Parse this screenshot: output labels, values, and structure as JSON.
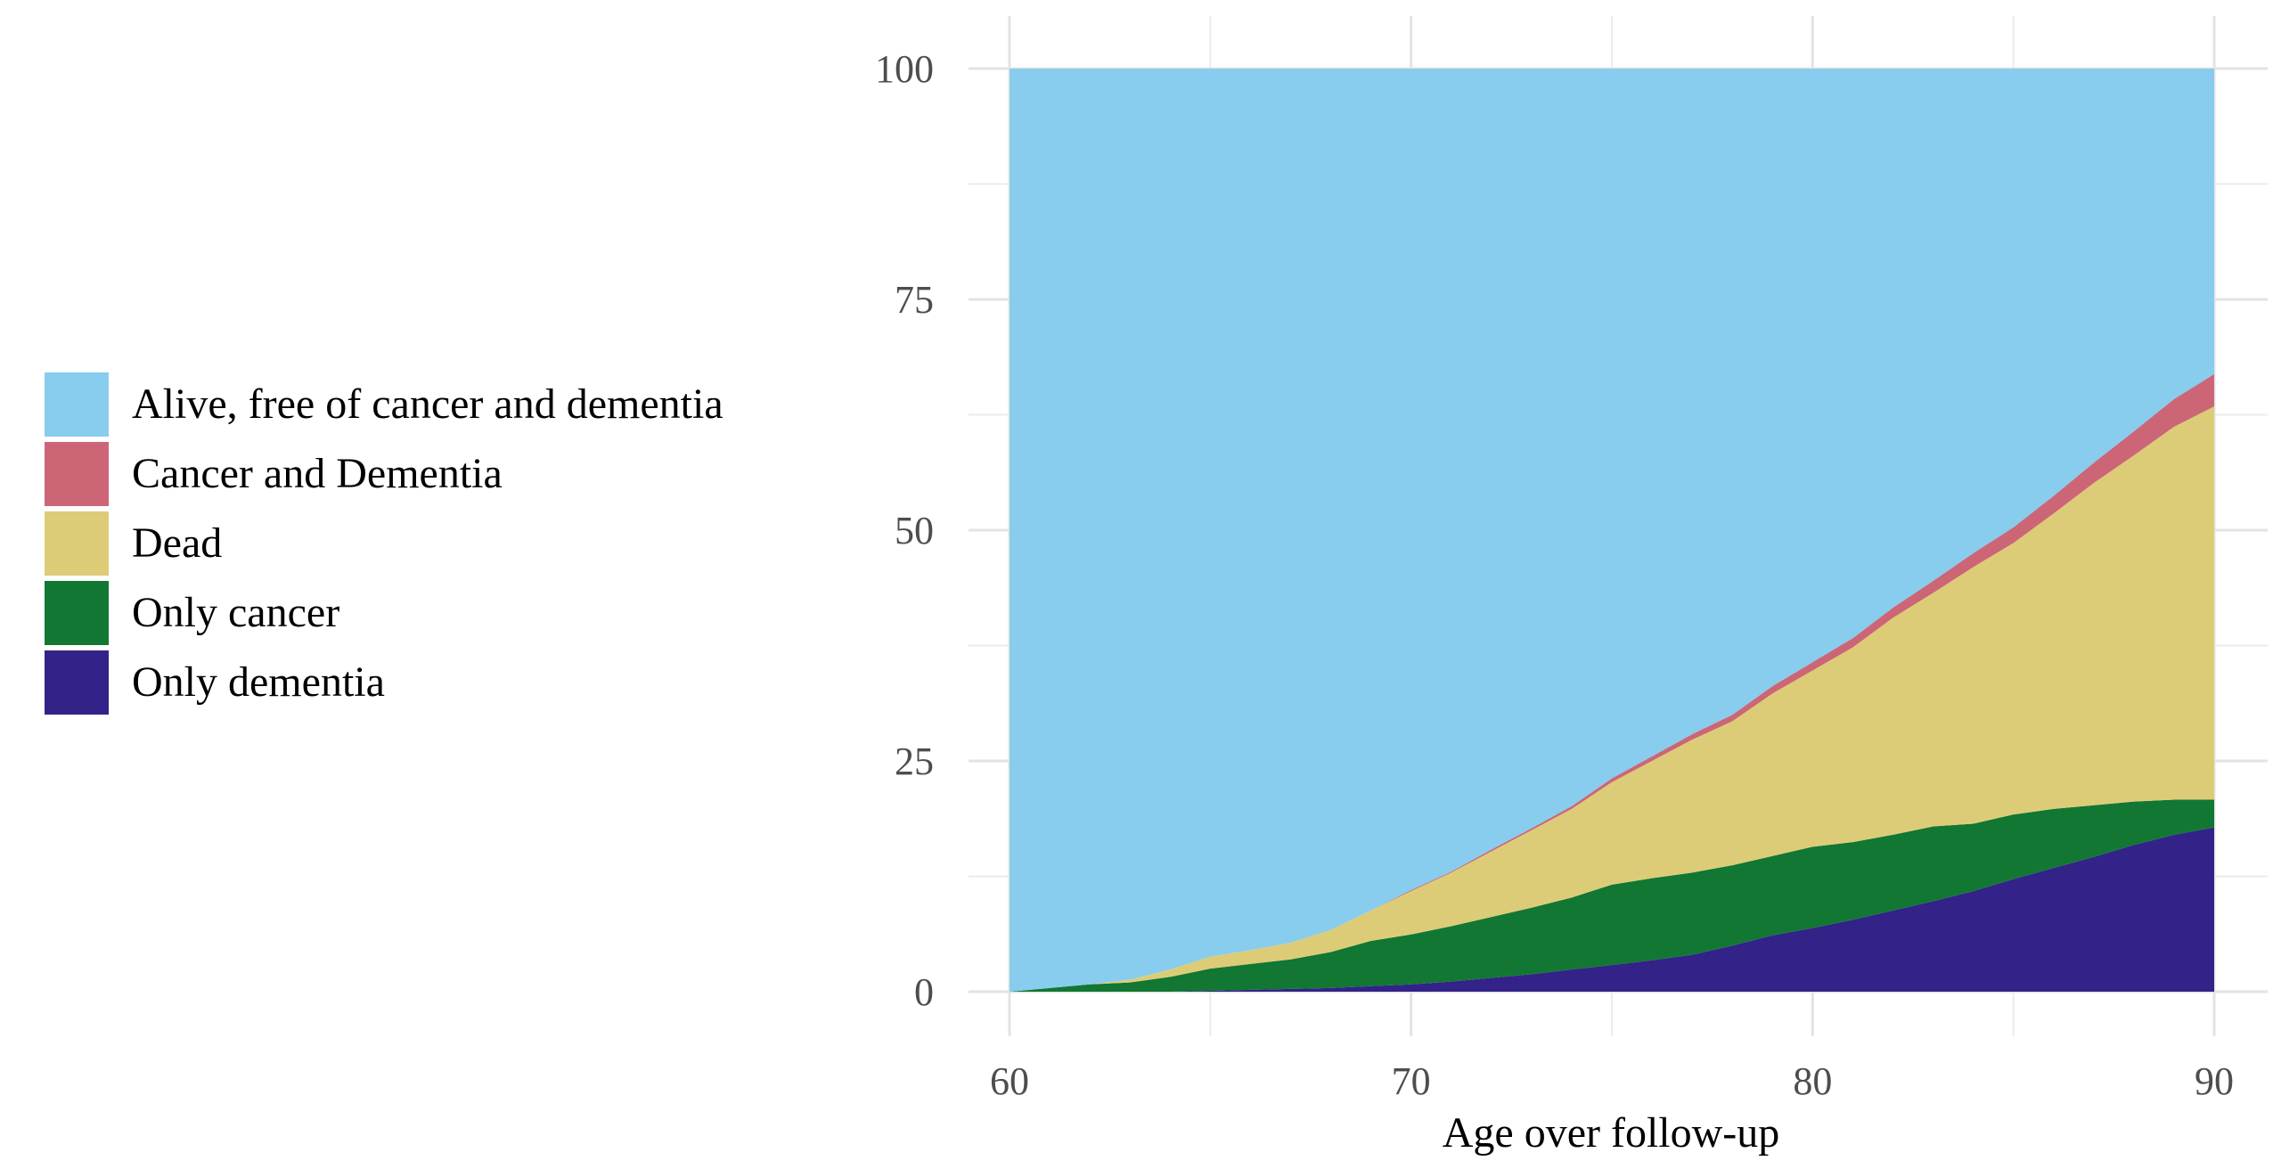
{
  "chart_data": {
    "type": "area",
    "stacked": true,
    "title": "",
    "xlabel": "Age over follow-up",
    "ylabel": "",
    "xlim": [
      60,
      90
    ],
    "ylim": [
      0,
      100
    ],
    "x_ticks": [
      60,
      70,
      80,
      90
    ],
    "y_ticks": [
      0,
      25,
      50,
      75,
      100
    ],
    "grid": true,
    "legend_position": "left",
    "x": [
      60,
      61,
      62,
      63,
      64,
      65,
      66,
      67,
      68,
      69,
      70,
      71,
      72,
      73,
      74,
      75,
      76,
      77,
      78,
      79,
      80,
      81,
      82,
      83,
      84,
      85,
      86,
      87,
      88,
      89,
      90
    ],
    "series": [
      {
        "name": "Only dementia",
        "color": "#332288",
        "values": [
          0,
          0,
          0,
          0,
          0,
          0.1,
          0.2,
          0.3,
          0.4,
          0.6,
          0.8,
          1.1,
          1.5,
          1.9,
          2.4,
          2.9,
          3.4,
          4.0,
          5.0,
          6.1,
          6.9,
          7.8,
          8.8,
          9.8,
          10.9,
          12.2,
          13.4,
          14.6,
          15.9,
          17.0,
          17.8
        ]
      },
      {
        "name": "Only cancer",
        "color": "#117733",
        "values": [
          0,
          0.4,
          0.8,
          1.0,
          1.6,
          2.4,
          2.8,
          3.2,
          3.9,
          4.9,
          5.4,
          6.0,
          6.6,
          7.2,
          7.8,
          8.7,
          8.9,
          8.9,
          8.7,
          8.6,
          8.8,
          8.4,
          8.2,
          8.1,
          7.3,
          7.0,
          6.4,
          5.6,
          4.7,
          3.8,
          3.0
        ]
      },
      {
        "name": "Dead",
        "color": "#DDCC77",
        "values": [
          0,
          0,
          0,
          0.3,
          0.8,
          1.3,
          1.5,
          1.8,
          2.4,
          3.3,
          4.7,
          5.8,
          7.1,
          8.4,
          9.6,
          11.1,
          12.7,
          14.4,
          15.6,
          17.6,
          19.1,
          21.1,
          23.5,
          25.3,
          27.8,
          29.4,
          32.0,
          34.9,
          37.5,
          40.4,
          42.6
        ]
      },
      {
        "name": "Cancer and Dementia",
        "color": "#CC6677",
        "values": [
          0,
          0,
          0,
          0,
          0,
          0,
          0,
          0,
          0,
          0,
          0.1,
          0.1,
          0.2,
          0.2,
          0.3,
          0.4,
          0.5,
          0.6,
          0.7,
          0.8,
          0.9,
          1.0,
          1.1,
          1.3,
          1.5,
          1.7,
          1.9,
          2.2,
          2.6,
          3.0,
          3.5
        ]
      },
      {
        "name": "Alive, free of cancer and dementia",
        "color": "#88CCEE",
        "values": [
          100,
          99.6,
          99.2,
          98.7,
          97.6,
          96.2,
          95.5,
          94.7,
          93.3,
          91.2,
          89.0,
          87.0,
          84.6,
          82.3,
          79.9,
          76.9,
          74.5,
          72.1,
          70.0,
          66.9,
          64.3,
          61.7,
          58.4,
          55.5,
          52.5,
          49.7,
          46.3,
          42.7,
          39.3,
          35.8,
          33.1
        ]
      }
    ]
  },
  "legend": {
    "items": [
      {
        "label": "Alive, free of cancer and dementia",
        "color": "#88CCEE"
      },
      {
        "label": "Cancer and Dementia",
        "color": "#CC6677"
      },
      {
        "label": "Dead",
        "color": "#DDCC77"
      },
      {
        "label": "Only cancer",
        "color": "#117733"
      },
      {
        "label": "Only dementia",
        "color": "#332288"
      }
    ]
  },
  "axes": {
    "x_tick_labels": [
      "60",
      "70",
      "80",
      "90"
    ],
    "y_tick_labels": [
      "0",
      "25",
      "50",
      "75",
      "100"
    ],
    "x_title": "Age over follow-up"
  }
}
